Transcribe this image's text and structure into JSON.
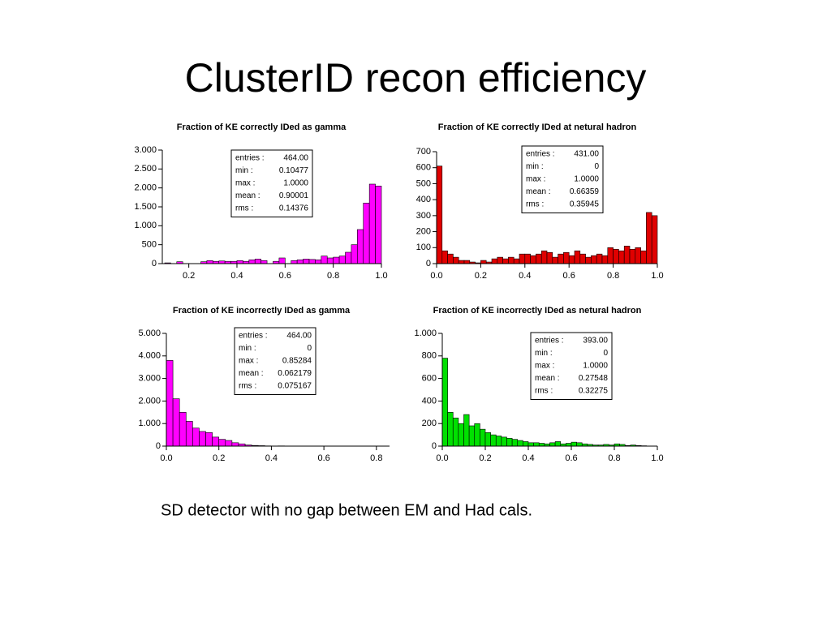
{
  "title": "ClusterID recon efficiency",
  "caption": "SD detector with no gap between EM and Had cals.",
  "chart_data": [
    {
      "type": "histogram",
      "title": "Fraction of KE correctly IDed as gamma",
      "color": "#ff00ff",
      "bins": [
        0.1,
        0.125,
        0.15,
        0.175,
        0.2,
        0.225,
        0.25,
        0.275,
        0.3,
        0.325,
        0.35,
        0.375,
        0.4,
        0.425,
        0.45,
        0.475,
        0.5,
        0.525,
        0.55,
        0.575,
        0.6,
        0.625,
        0.65,
        0.675,
        0.7,
        0.725,
        0.75,
        0.775,
        0.8,
        0.825,
        0.85,
        0.875,
        0.9,
        0.925,
        0.95,
        0.975,
        1.0
      ],
      "values": [
        20,
        0,
        50,
        0,
        0,
        0,
        50,
        80,
        60,
        70,
        60,
        60,
        80,
        60,
        100,
        120,
        80,
        0,
        60,
        150,
        0,
        80,
        100,
        120,
        110,
        100,
        200,
        150,
        170,
        200,
        300,
        500,
        900,
        1600,
        2100,
        2050
      ],
      "xlim": [
        0.09,
        1.0
      ],
      "xticks": [
        0.2,
        0.4,
        0.6,
        0.8,
        {
          "value": 1.0,
          "label": "1.0"
        }
      ],
      "ylim": [
        0,
        3000
      ],
      "yticks": [
        0,
        500,
        {
          "value": 1000,
          "label": "1.000"
        },
        {
          "value": 1500,
          "label": "1.500"
        },
        {
          "value": 2000,
          "label": "2.000"
        },
        {
          "value": 2500,
          "label": "2.500"
        },
        {
          "value": 3000,
          "label": "3.000"
        }
      ],
      "stats": [
        {
          "label": "entries :",
          "value": "464.00"
        },
        {
          "label": "min :",
          "value": "0.10477"
        },
        {
          "label": "max :",
          "value": "1.0000"
        },
        {
          "label": "mean :",
          "value": "0.90001"
        },
        {
          "label": "rms :",
          "value": "0.14376"
        }
      ]
    },
    {
      "type": "histogram",
      "title": "Fraction of KE correctly IDed at netural hadron",
      "color": "#e00000",
      "bins": [
        0,
        0.025,
        0.05,
        0.075,
        0.1,
        0.125,
        0.15,
        0.175,
        0.2,
        0.225,
        0.25,
        0.275,
        0.3,
        0.325,
        0.35,
        0.375,
        0.4,
        0.425,
        0.45,
        0.475,
        0.5,
        0.525,
        0.55,
        0.575,
        0.6,
        0.625,
        0.65,
        0.675,
        0.7,
        0.725,
        0.75,
        0.775,
        0.8,
        0.825,
        0.85,
        0.875,
        0.9,
        0.925,
        0.95,
        0.975,
        1.0
      ],
      "values": [
        610,
        80,
        60,
        40,
        20,
        20,
        10,
        5,
        20,
        10,
        30,
        40,
        30,
        40,
        30,
        60,
        60,
        50,
        60,
        80,
        70,
        40,
        60,
        70,
        50,
        80,
        60,
        40,
        50,
        60,
        50,
        100,
        90,
        80,
        110,
        90,
        100,
        80,
        320,
        300
      ],
      "xlim": [
        0,
        1.0
      ],
      "xticks": [
        {
          "value": 0,
          "label": "0.0"
        },
        0.2,
        0.4,
        0.6,
        0.8,
        {
          "value": 1.0,
          "label": "1.0"
        }
      ],
      "ylim": [
        0,
        700
      ],
      "yticks": [
        0,
        100,
        200,
        300,
        400,
        500,
        600,
        700
      ],
      "stats": [
        {
          "label": "entries :",
          "value": "431.00"
        },
        {
          "label": "min :",
          "value": "0"
        },
        {
          "label": "max :",
          "value": "1.0000"
        },
        {
          "label": "mean :",
          "value": "0.66359"
        },
        {
          "label": "rms :",
          "value": "0.35945"
        }
      ]
    },
    {
      "type": "histogram",
      "title": "Fraction of KE incorrectly IDed as gamma",
      "color": "#ff00ff",
      "bins": [
        0,
        0.025,
        0.05,
        0.075,
        0.1,
        0.125,
        0.15,
        0.175,
        0.2,
        0.225,
        0.25,
        0.275,
        0.3,
        0.325,
        0.35,
        0.375,
        0.4,
        0.425,
        0.45,
        0.475,
        0.5,
        0.525,
        0.55,
        0.575,
        0.6,
        0.625,
        0.65,
        0.675,
        0.7,
        0.725,
        0.75,
        0.775,
        0.8,
        0.825,
        0.85
      ],
      "values": [
        3800,
        2100,
        1500,
        1100,
        800,
        650,
        600,
        400,
        300,
        250,
        150,
        100,
        50,
        30,
        20,
        10,
        0,
        10,
        0,
        0,
        5,
        5,
        0,
        0,
        0,
        0,
        0,
        0,
        0,
        0,
        0,
        0,
        5,
        0
      ],
      "xlim": [
        0,
        0.85
      ],
      "xticks": [
        {
          "value": 0,
          "label": "0.0"
        },
        0.2,
        0.4,
        0.6,
        0.8
      ],
      "ylim": [
        0,
        5000
      ],
      "yticks": [
        0,
        {
          "value": 1000,
          "label": "1.000"
        },
        {
          "value": 2000,
          "label": "2.000"
        },
        {
          "value": 3000,
          "label": "3.000"
        },
        {
          "value": 4000,
          "label": "4.000"
        },
        {
          "value": 5000,
          "label": "5.000"
        }
      ],
      "stats": [
        {
          "label": "entries :",
          "value": "464.00"
        },
        {
          "label": "min :",
          "value": "0"
        },
        {
          "label": "max :",
          "value": "0.85284"
        },
        {
          "label": "mean :",
          "value": "0.062179"
        },
        {
          "label": "rms :",
          "value": "0.075167"
        }
      ]
    },
    {
      "type": "histogram",
      "title": "Fraction of KE incorrectly IDed as netural hadron",
      "color": "#00e000",
      "bins": [
        0,
        0.025,
        0.05,
        0.075,
        0.1,
        0.125,
        0.15,
        0.175,
        0.2,
        0.225,
        0.25,
        0.275,
        0.3,
        0.325,
        0.35,
        0.375,
        0.4,
        0.425,
        0.45,
        0.475,
        0.5,
        0.525,
        0.55,
        0.575,
        0.6,
        0.625,
        0.65,
        0.675,
        0.7,
        0.725,
        0.75,
        0.775,
        0.8,
        0.825,
        0.85,
        0.875,
        0.9,
        0.925,
        0.95,
        0.975,
        1.0
      ],
      "values": [
        780,
        300,
        250,
        200,
        280,
        180,
        200,
        150,
        120,
        100,
        90,
        80,
        70,
        60,
        50,
        40,
        30,
        30,
        25,
        20,
        30,
        40,
        20,
        25,
        35,
        30,
        20,
        15,
        10,
        10,
        15,
        10,
        20,
        15,
        5,
        10,
        5,
        3,
        0,
        0
      ],
      "xlim": [
        0,
        1.0
      ],
      "xticks": [
        {
          "value": 0,
          "label": "0.0"
        },
        0.2,
        0.4,
        0.6,
        0.8,
        {
          "value": 1.0,
          "label": "1.0"
        }
      ],
      "ylim": [
        0,
        1000
      ],
      "yticks": [
        0,
        200,
        400,
        600,
        800,
        {
          "value": 1000,
          "label": "1.000"
        }
      ],
      "stats": [
        {
          "label": "entries :",
          "value": "393.00"
        },
        {
          "label": "min :",
          "value": "0"
        },
        {
          "label": "max :",
          "value": "1.0000"
        },
        {
          "label": "mean :",
          "value": "0.27548"
        },
        {
          "label": "rms :",
          "value": "0.32275"
        }
      ]
    }
  ]
}
